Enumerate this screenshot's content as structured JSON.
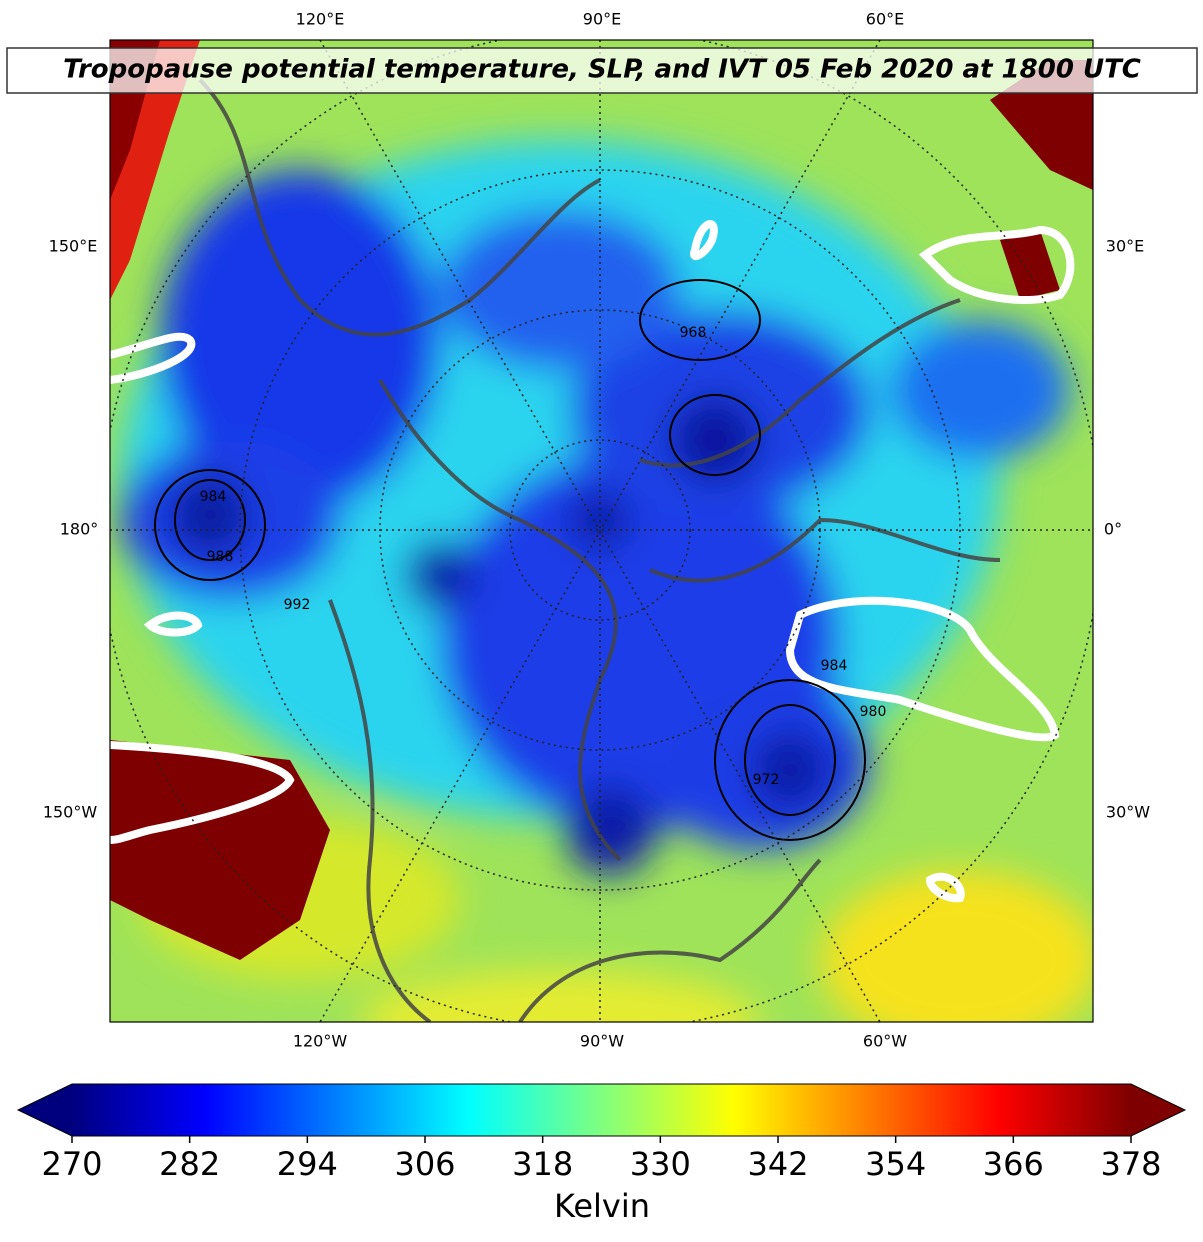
{
  "title": "Tropopause potential temperature, SLP, and IVT 05 Feb 2020 at 1800 UTC",
  "map_labels": {
    "top": [
      "120°E",
      "90°E",
      "60°E"
    ],
    "left": [
      "150°E",
      "180°",
      "150°W"
    ],
    "right": [
      "30°E",
      "0°",
      "30°W"
    ],
    "bottom": [
      "120°W",
      "90°W",
      "60°W"
    ]
  },
  "slp_contour_labels": [
    "984",
    "988",
    "992",
    "968",
    "984",
    "980",
    "972"
  ],
  "colorbar": {
    "label": "Kelvin",
    "range": [
      270,
      378
    ],
    "ticks": [
      270,
      282,
      294,
      306,
      318,
      330,
      342,
      354,
      366,
      378
    ],
    "colormap": [
      "#00007f",
      "#0000ff",
      "#007fff",
      "#00ffff",
      "#7fff7f",
      "#ffff00",
      "#ff7f00",
      "#ff0000",
      "#7f0000"
    ]
  }
}
